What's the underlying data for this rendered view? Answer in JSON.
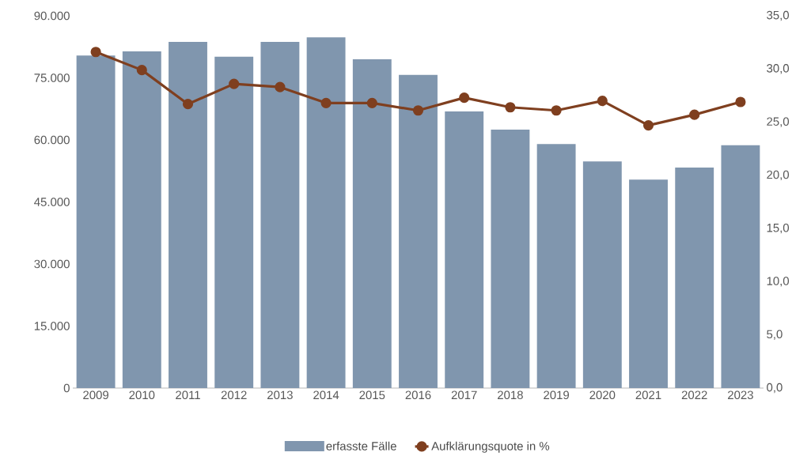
{
  "chart_data": {
    "type": "bar",
    "categories": [
      "2009",
      "2010",
      "2011",
      "2012",
      "2013",
      "2014",
      "2015",
      "2016",
      "2017",
      "2018",
      "2019",
      "2020",
      "2021",
      "2022",
      "2023"
    ],
    "series": [
      {
        "name": "erfasste Fälle",
        "color": "#8096ae",
        "values": [
          80400,
          81400,
          83700,
          80100,
          83700,
          84800,
          79500,
          75700,
          66900,
          62500,
          59000,
          54800,
          50400,
          53300,
          58700
        ]
      },
      {
        "name": "Aufklärungsquote in %",
        "type": "line",
        "axis": "y2",
        "color": "#7f3f1f",
        "marker": "circle",
        "values": [
          31.6,
          29.9,
          26.7,
          28.6,
          28.3,
          26.8,
          26.8,
          26.1,
          27.3,
          26.4,
          26.1,
          27.0,
          24.7,
          25.7,
          26.9
        ]
      }
    ],
    "ylim": [
      0,
      90000
    ],
    "yticks": [
      {
        "value": 0,
        "label": "0"
      },
      {
        "value": 15000,
        "label": "15.000"
      },
      {
        "value": 30000,
        "label": "30.000"
      },
      {
        "value": 45000,
        "label": "45.000"
      },
      {
        "value": 60000,
        "label": "60.000"
      },
      {
        "value": 75000,
        "label": "75.000"
      },
      {
        "value": 90000,
        "label": "90.000"
      }
    ],
    "y2lim": [
      0,
      35
    ],
    "y2ticks": [
      {
        "value": 0,
        "label": "0,0"
      },
      {
        "value": 5,
        "label": "5,0"
      },
      {
        "value": 10,
        "label": "10,0"
      },
      {
        "value": 15,
        "label": "15,0"
      },
      {
        "value": 20,
        "label": "20,0"
      },
      {
        "value": 25,
        "label": "25,0"
      },
      {
        "value": 30,
        "label": "30,0"
      },
      {
        "value": 35,
        "label": "35,0"
      }
    ],
    "legend": "bottom"
  }
}
